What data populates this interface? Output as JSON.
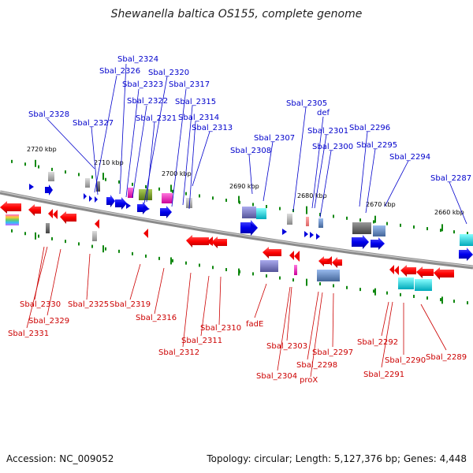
{
  "title": "Shewanella baltica OS155, complete genome",
  "footer": {
    "accession": "Accession: NC_009052",
    "summary": "Topology: circular; Length: 5,127,376 bp; Genes: 4,448"
  },
  "colors": {
    "forward_label": "#0000cc",
    "reverse_label": "#cc0000",
    "forward_arrow": "#0000dd",
    "reverse_arrow": "#ee0000",
    "tick": "#118811",
    "backbone": "#808080"
  },
  "scale_labels": [
    "2720 kbp",
    "2710 kbp",
    "2700 kbp",
    "2690 kbp",
    "2680 kbp",
    "2670 kbp",
    "2660 kbp"
  ],
  "forward_genes": [
    "Sbal_2324",
    "Sbal_2326",
    "Sbal_2320",
    "Sbal_2323",
    "Sbal_2317",
    "Sbal_2322",
    "Sbal_2315",
    "Sbal_2328",
    "Sbal_2321",
    "Sbal_2314",
    "Sbal_2327",
    "Sbal_2313",
    "Sbal_2307",
    "Sbal_2308",
    "Sbal_2305",
    "def",
    "Sbal_2301",
    "Sbal_2300",
    "Sbal_2296",
    "Sbal_2295",
    "Sbal_2294",
    "Sbal_2287"
  ],
  "reverse_genes": [
    "Sbal_2330",
    "Sbal_2325",
    "Sbal_2319",
    "Sbal_2329",
    "Sbal_2331",
    "Sbal_2316",
    "Sbal_2310",
    "Sbal_2311",
    "Sbal_2312",
    "fadE",
    "Sbal_2303",
    "Sbal_2304",
    "Sbal_2298",
    "proX",
    "Sbal_2297",
    "Sbal_2292",
    "Sbal_2290",
    "Sbal_2291",
    "Sbal_2289"
  ]
}
